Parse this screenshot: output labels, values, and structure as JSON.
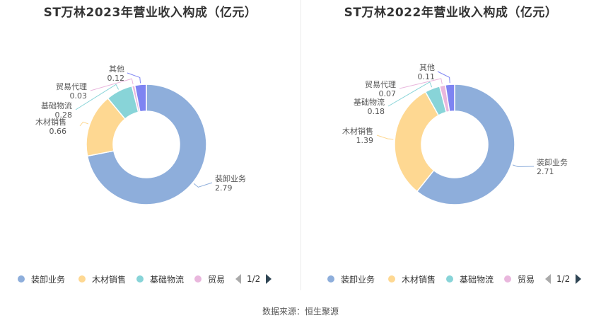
{
  "source": "数据来源：恒生聚源",
  "chart_data": [
    {
      "type": "pie",
      "title": "ST万林2023年营业收入构成（亿元）",
      "slices": [
        {
          "name": "装卸业务",
          "value": 2.79,
          "label": "2.79",
          "color": "#8eaedb"
        },
        {
          "name": "木材销售",
          "value": 0.66,
          "label": "0.66",
          "color": "#fed892"
        },
        {
          "name": "基础物流",
          "value": 0.28,
          "label": "0.28",
          "color": "#88d4d8"
        },
        {
          "name": "贸易代理",
          "value": 0.03,
          "label": "0.03",
          "color": "#e9b7dd"
        },
        {
          "name": "其他",
          "value": 0.12,
          "label": "0.12",
          "color": "#7e84f2"
        }
      ],
      "legend": {
        "items": [
          {
            "name": "装卸业务",
            "color": "#8eaedb"
          },
          {
            "name": "木材销售",
            "color": "#fed892"
          },
          {
            "name": "基础物流",
            "color": "#88d4d8"
          },
          {
            "name": "贸易",
            "color": "#e9b7dd"
          }
        ],
        "page": "1/2"
      }
    },
    {
      "type": "pie",
      "title": "ST万林2022年营业收入构成（亿元）",
      "slices": [
        {
          "name": "装卸业务",
          "value": 2.71,
          "label": "2.71",
          "color": "#8eaedb"
        },
        {
          "name": "木材销售",
          "value": 1.39,
          "label": "1.39",
          "color": "#fed892"
        },
        {
          "name": "基础物流",
          "value": 0.18,
          "label": "0.18",
          "color": "#88d4d8"
        },
        {
          "name": "贸易代理",
          "value": 0.07,
          "label": "0.07",
          "color": "#e9b7dd"
        },
        {
          "name": "其他",
          "value": 0.11,
          "label": "0.11",
          "color": "#7e84f2"
        }
      ],
      "legend": {
        "items": [
          {
            "name": "装卸业务",
            "color": "#8eaedb"
          },
          {
            "name": "木材销售",
            "color": "#fed892"
          },
          {
            "name": "基础物流",
            "color": "#88d4d8"
          },
          {
            "name": "贸易",
            "color": "#e9b7dd"
          }
        ],
        "page": "1/2"
      }
    }
  ]
}
